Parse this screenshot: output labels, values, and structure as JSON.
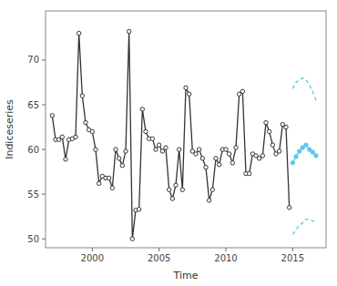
{
  "chart_data": {
    "type": "line",
    "xlabel": "Time",
    "ylabel": "Indiceseries",
    "xlim": [
      1996.5,
      2017.5
    ],
    "ylim": [
      49.0,
      75.5
    ],
    "xticks": [
      2000,
      2005,
      2010,
      2015
    ],
    "yticks": [
      50,
      55,
      60,
      65,
      70
    ],
    "grid": false,
    "series": [
      {
        "color": "#333333",
        "line_style": "solid",
        "marker": "circle",
        "x": [
          1997.0,
          1997.25,
          1997.5,
          1997.75,
          1998.0,
          1998.25,
          1998.5,
          1998.75,
          1999.0,
          1999.25,
          1999.5,
          1999.75,
          2000.0,
          2000.25,
          2000.5,
          2000.75,
          2001.0,
          2001.25,
          2001.5,
          2001.75,
          2002.0,
          2002.25,
          2002.5,
          2002.75,
          2003.0,
          2003.25,
          2003.5,
          2003.75,
          2004.0,
          2004.25,
          2004.5,
          2004.75,
          2005.0,
          2005.25,
          2005.5,
          2005.75,
          2006.0,
          2006.25,
          2006.5,
          2006.75,
          2007.0,
          2007.25,
          2007.5,
          2007.75,
          2008.0,
          2008.25,
          2008.5,
          2008.75,
          2009.0,
          2009.25,
          2009.5,
          2009.75,
          2010.0,
          2010.25,
          2010.5,
          2010.75,
          2011.0,
          2011.25,
          2011.5,
          2011.75,
          2012.0,
          2012.25,
          2012.5,
          2012.75,
          2013.0,
          2013.25,
          2013.5,
          2013.75,
          2014.0,
          2014.25,
          2014.5,
          2014.75
        ],
        "values": [
          63.8,
          61.1,
          61.1,
          61.4,
          58.9,
          61.1,
          61.2,
          61.4,
          73.0,
          66.0,
          63.0,
          62.2,
          62.0,
          60.0,
          56.2,
          57.0,
          56.8,
          56.8,
          55.7,
          60.0,
          59.0,
          58.2,
          59.8,
          73.2,
          50.0,
          53.2,
          53.3,
          64.5,
          62.0,
          61.2,
          61.2,
          60.0,
          60.5,
          59.8,
          60.2,
          55.5,
          54.5,
          56.0,
          60.0,
          55.5,
          66.9,
          66.2,
          59.8,
          59.5,
          60.0,
          59.0,
          58.0,
          54.3,
          55.5,
          59.0,
          58.3,
          60.0,
          60.0,
          59.5,
          58.5,
          60.2,
          66.2,
          66.5,
          57.3,
          57.3,
          59.5,
          59.3,
          59.0,
          59.3,
          63.0,
          62.0,
          60.5,
          59.5,
          59.8,
          62.8,
          62.5,
          53.5
        ]
      },
      {
        "color": "#5bc8e8",
        "line_style": "solid",
        "marker": "circle",
        "x": [
          2015.0,
          2015.25,
          2015.5,
          2015.75,
          2016.0,
          2016.25,
          2016.5,
          2016.75
        ],
        "values": [
          58.5,
          59.2,
          59.8,
          60.2,
          60.5,
          60.0,
          59.7,
          59.3
        ]
      },
      {
        "color": "#5bc8e8",
        "line_style": "dashed",
        "marker": "none",
        "x": [
          2015.0,
          2015.25,
          2015.5,
          2015.75,
          2016.0,
          2016.25,
          2016.5,
          2016.75
        ],
        "values": [
          66.8,
          67.5,
          67.8,
          68.0,
          67.8,
          67.2,
          66.5,
          65.5
        ]
      },
      {
        "color": "#5bc8e8",
        "line_style": "dashed",
        "marker": "none",
        "x": [
          2015.0,
          2015.25,
          2015.5,
          2015.75,
          2016.0,
          2016.25,
          2016.5,
          2016.75
        ],
        "values": [
          50.5,
          51.0,
          51.5,
          51.8,
          52.2,
          52.2,
          52.0,
          51.8
        ]
      }
    ]
  }
}
